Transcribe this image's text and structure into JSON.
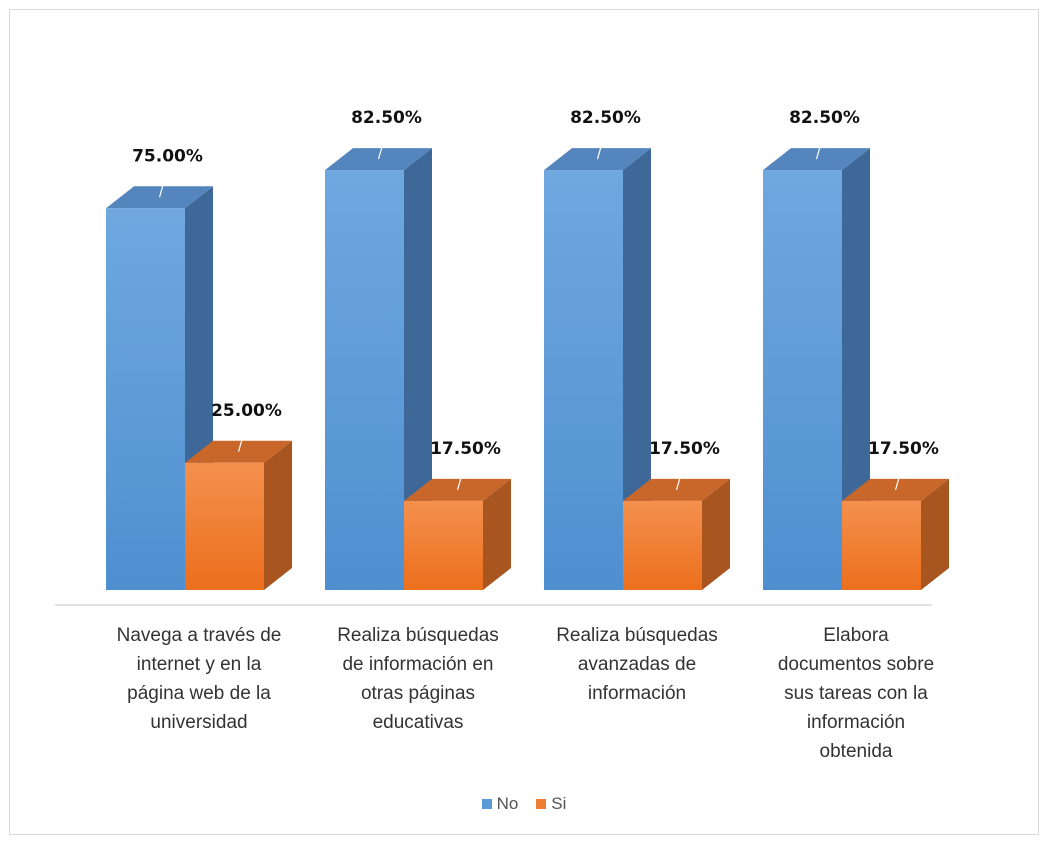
{
  "chart_data": {
    "type": "bar",
    "categories": [
      "Navega a través de\ninternet y en la\npágina web de la\nuniversidad",
      "Realiza búsquedas\nde información en\notras páginas\neducativas",
      "Realiza búsquedas\navanzadas de\ninformación",
      "Elabora\ndocumentos sobre\nsus tareas con la\ninformación\nobtenida"
    ],
    "series": [
      {
        "name": "No",
        "values": [
          75.0,
          82.5,
          82.5,
          82.5
        ],
        "labels": [
          "75.00%",
          "82.50%",
          "82.50%",
          "82.50%"
        ],
        "color": "#5b9bd5"
      },
      {
        "name": "Si",
        "values": [
          25.0,
          17.5,
          17.5,
          17.5
        ],
        "labels": [
          "25.00%",
          "17.50%",
          "17.50%",
          "17.50%"
        ],
        "color": "#ed7d31"
      }
    ],
    "ylim": [
      0,
      100
    ],
    "grid": false,
    "legend": "bottom",
    "style": "3d-column"
  }
}
